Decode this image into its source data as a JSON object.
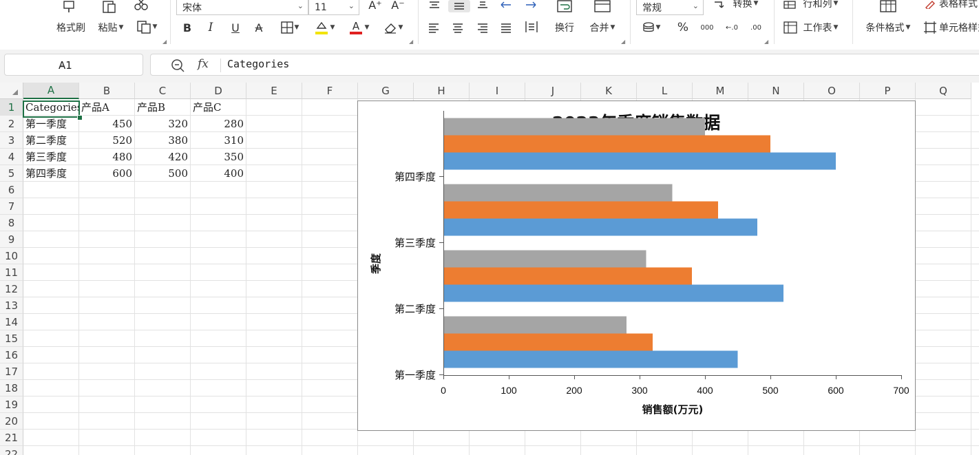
{
  "ribbon": {
    "format_painter": "格式刷",
    "paste": "粘贴",
    "font_name": "宋体",
    "font_size": "11",
    "wrap": "换行",
    "merge": "合并",
    "number_format": "常规",
    "convert": "转换",
    "rows_cols": "行和列",
    "worksheet": "工作表",
    "conditional_format": "条件格式",
    "table_style": "表格样式",
    "cell_style": "单元格样式",
    "bold": "B",
    "italic": "I",
    "underline": "U",
    "strike": "A",
    "font_color_letter": "A",
    "grow_font": "A⁺",
    "shrink_font": "A⁻",
    "percent": "%",
    "thousands": "000",
    "inc_dec": "←.0",
    "dec_dec": ".00",
    "colors": {
      "highlight": "#f2e300",
      "font": "#e02020"
    }
  },
  "formula_bar": {
    "name_box": "A1",
    "fx": "fx",
    "value": "Categories"
  },
  "sheet": {
    "columns": [
      "A",
      "B",
      "C",
      "D",
      "E",
      "F",
      "G",
      "H",
      "I",
      "J",
      "K",
      "L",
      "M",
      "N",
      "O",
      "P",
      "Q"
    ],
    "rows": [
      "1",
      "2",
      "3",
      "4",
      "5",
      "6",
      "7",
      "8",
      "9",
      "10",
      "11",
      "12",
      "13",
      "14",
      "15",
      "16",
      "17",
      "18",
      "19",
      "20",
      "21",
      "22"
    ],
    "selected_cell": "A1",
    "cells": [
      [
        "Categories",
        "产品A",
        "产品B",
        "产品C"
      ],
      [
        "第一季度",
        "450",
        "320",
        "280"
      ],
      [
        "第二季度",
        "520",
        "380",
        "310"
      ],
      [
        "第三季度",
        "480",
        "420",
        "350"
      ],
      [
        "第四季度",
        "600",
        "500",
        "400"
      ]
    ]
  },
  "chart_data": {
    "type": "bar",
    "orientation": "horizontal",
    "title": "2023年季度销售数据",
    "xlabel": "销售额(万元)",
    "ylabel": "季度",
    "categories": [
      "第一季度",
      "第二季度",
      "第三季度",
      "第四季度"
    ],
    "series": [
      {
        "name": "产品A",
        "values": [
          450,
          520,
          480,
          600
        ],
        "color": "#5b9bd5"
      },
      {
        "name": "产品B",
        "values": [
          320,
          380,
          420,
          500
        ],
        "color": "#ed7d31"
      },
      {
        "name": "产品C",
        "values": [
          280,
          310,
          350,
          400
        ],
        "color": "#a5a5a5"
      }
    ],
    "xlim": [
      0,
      700
    ],
    "xticks": [
      "0",
      "100",
      "200",
      "300",
      "400",
      "500",
      "600",
      "700"
    ],
    "legend": "none",
    "grid": false
  }
}
